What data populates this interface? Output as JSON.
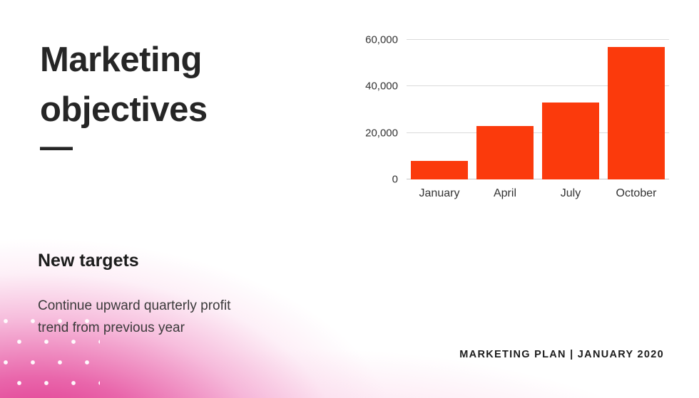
{
  "slide": {
    "title": "Marketing objectives",
    "title_dash": "—",
    "subheading": "New targets",
    "body": "Continue upward quarterly profit trend from previous year",
    "footer": "MARKETING PLAN | JANUARY 2020"
  },
  "colors": {
    "bar": "#FB3A0C",
    "accent_pink": "#DB1C7D",
    "text_dark": "#262626"
  },
  "chart_data": {
    "type": "bar",
    "title": "",
    "xlabel": "",
    "ylabel": "",
    "categories": [
      "January",
      "April",
      "July",
      "October"
    ],
    "values": [
      8000,
      23000,
      33000,
      57000
    ],
    "ylim": [
      0,
      60000
    ],
    "yticks": [
      {
        "value": 0,
        "label": "0"
      },
      {
        "value": 20000,
        "label": "20,000"
      },
      {
        "value": 40000,
        "label": "40,000"
      },
      {
        "value": 60000,
        "label": "60,000"
      }
    ],
    "grid": true,
    "legend": false,
    "bar_color": "#FB3A0C"
  }
}
